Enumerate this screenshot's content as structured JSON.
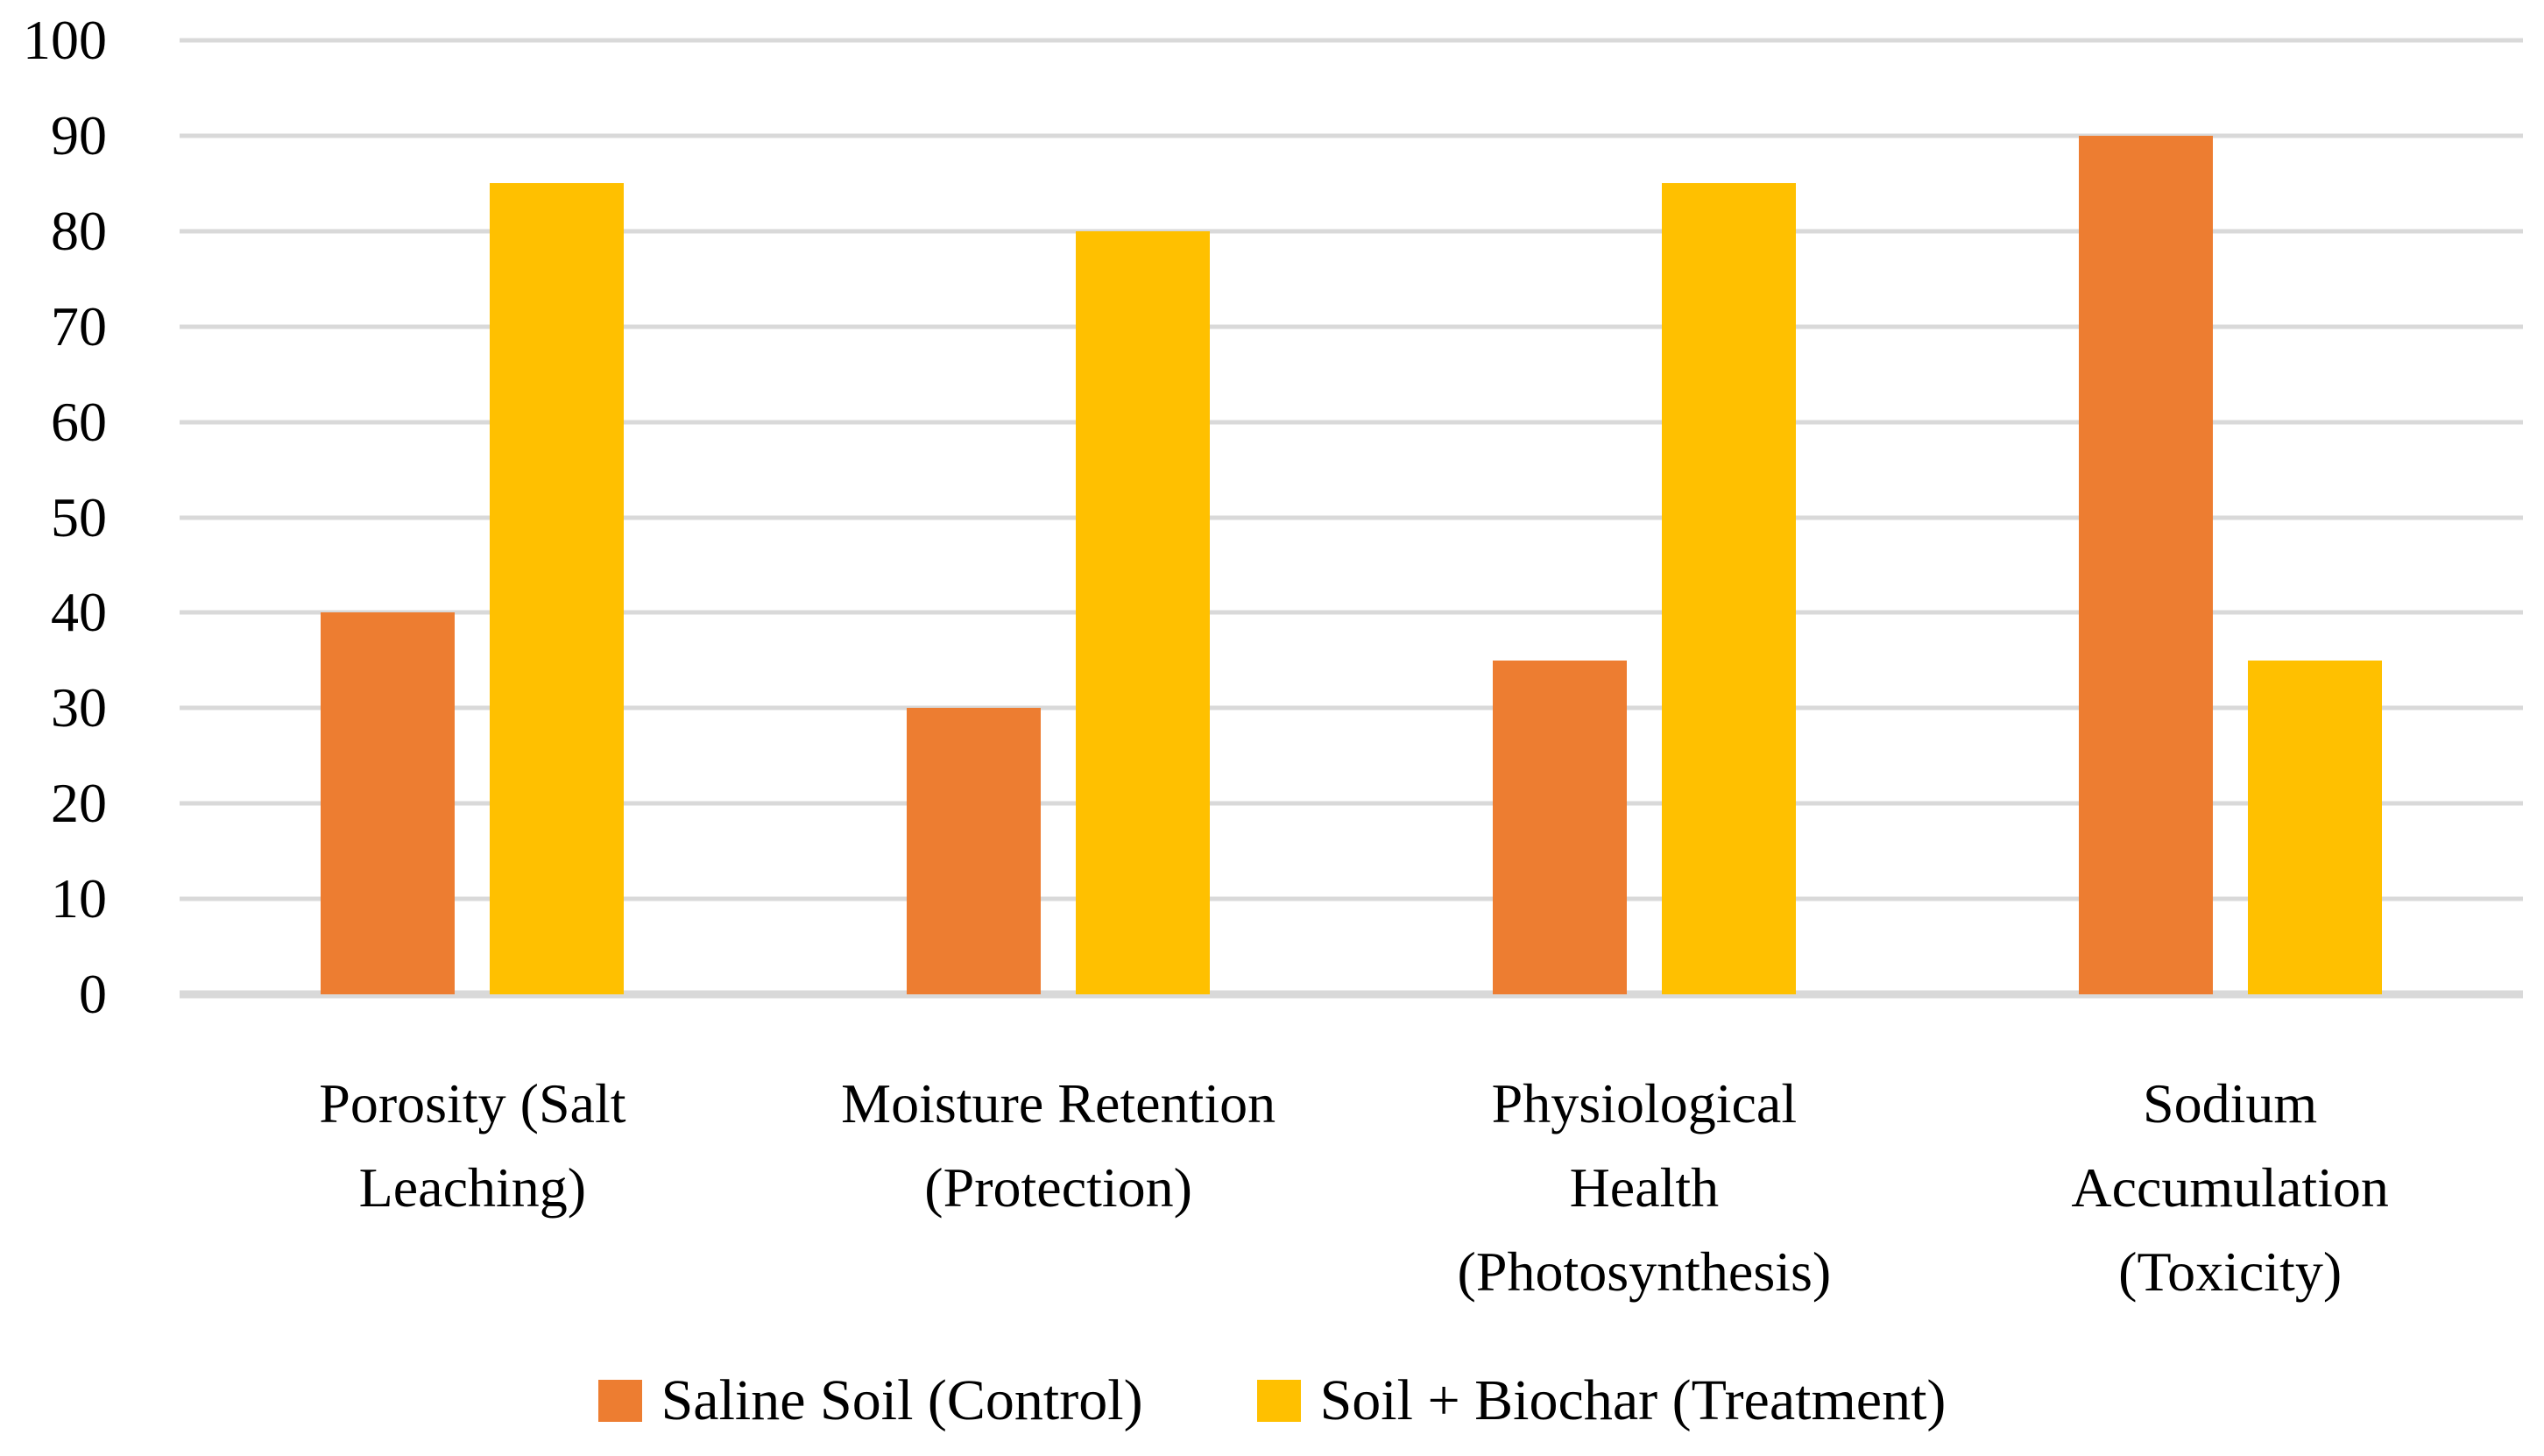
{
  "figure": {
    "background": "#FFFFFF",
    "text_color": "#000000"
  },
  "chart_data": {
    "type": "bar",
    "title": "",
    "xlabel": "",
    "ylabel": "",
    "categories": [
      "Porosity (Salt\nLeaching)",
      "Moisture Retention\n(Protection)",
      "Physiological\nHealth\n(Photosynthesis)",
      "Sodium\nAccumulation\n(Toxicity)"
    ],
    "series": [
      {
        "name": "Saline Soil (Control)",
        "color": "#ED7D31",
        "values": [
          40,
          30,
          35,
          90
        ]
      },
      {
        "name": "Soil + Biochar (Treatment)",
        "color": "#FFC000",
        "values": [
          85,
          80,
          85,
          35
        ]
      }
    ],
    "ylim": [
      0,
      100
    ],
    "y_tick_labels": [
      "0",
      "10",
      "20",
      "30",
      "40",
      "50",
      "60",
      "70",
      "80",
      "90",
      "100"
    ],
    "grid": true,
    "gridline_color": "#D9D9D9",
    "axis_line_color": "#D9D9D9",
    "legend_position": "bottom"
  }
}
